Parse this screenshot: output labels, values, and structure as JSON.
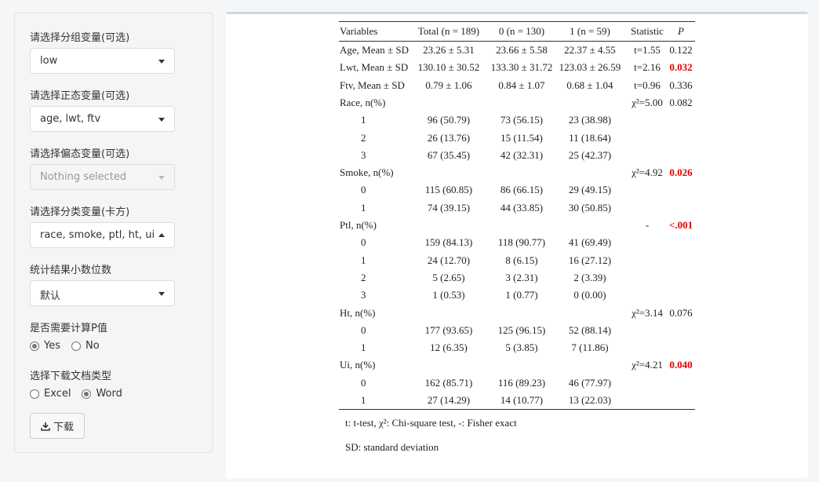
{
  "sidebar": {
    "group_label": "请选择分组变量(可选)",
    "group_value": "low",
    "normal_label": "请选择正态变量(可选)",
    "normal_value": "age, lwt, ftv",
    "skew_label": "请选择偏态变量(可选)",
    "skew_value": "Nothing selected",
    "cat_label": "请选择分类变量(卡方)",
    "cat_value": "race, smoke, ptl, ht, ui",
    "decimals_label": "统计结果小数位数",
    "decimals_value": "默认",
    "pvalue_label": "是否需要计算P值",
    "pvalue_yes": "Yes",
    "pvalue_no": "No",
    "doctype_label": "选择下载文档类型",
    "doctype_excel": "Excel",
    "doctype_word": "Word",
    "download_label": "下载"
  },
  "table": {
    "headers": [
      "Variables",
      "Total (n = 189)",
      "0 (n = 130)",
      "1 (n = 59)",
      "Statistic",
      "P"
    ],
    "rows": [
      {
        "v": "Age, Mean ± SD",
        "t": "23.26 ± 5.31",
        "a": "23.66 ± 5.58",
        "b": "22.37 ± 4.55",
        "s": "t=1.55",
        "p": "0.122",
        "sig": false,
        "indent": false
      },
      {
        "v": "Lwt, Mean ± SD",
        "t": "130.10 ± 30.52",
        "a": "133.30 ± 31.72",
        "b": "123.03 ± 26.59",
        "s": "t=2.16",
        "p": "0.032",
        "sig": true,
        "indent": false
      },
      {
        "v": "Ftv, Mean ± SD",
        "t": "0.79 ± 1.06",
        "a": "0.84 ± 1.07",
        "b": "0.68 ± 1.04",
        "s": "t=0.96",
        "p": "0.336",
        "sig": false,
        "indent": false
      },
      {
        "v": "Race, n(%)",
        "t": "",
        "a": "",
        "b": "",
        "s": "χ²=5.00",
        "p": "0.082",
        "sig": false,
        "indent": false
      },
      {
        "v": "1",
        "t": "96 (50.79)",
        "a": "73 (56.15)",
        "b": "23 (38.98)",
        "s": "",
        "p": "",
        "sig": false,
        "indent": true
      },
      {
        "v": "2",
        "t": "26 (13.76)",
        "a": "15 (11.54)",
        "b": "11 (18.64)",
        "s": "",
        "p": "",
        "sig": false,
        "indent": true
      },
      {
        "v": "3",
        "t": "67 (35.45)",
        "a": "42 (32.31)",
        "b": "25 (42.37)",
        "s": "",
        "p": "",
        "sig": false,
        "indent": true
      },
      {
        "v": "Smoke, n(%)",
        "t": "",
        "a": "",
        "b": "",
        "s": "χ²=4.92",
        "p": "0.026",
        "sig": true,
        "indent": false
      },
      {
        "v": "0",
        "t": "115 (60.85)",
        "a": "86 (66.15)",
        "b": "29 (49.15)",
        "s": "",
        "p": "",
        "sig": false,
        "indent": true
      },
      {
        "v": "1",
        "t": "74 (39.15)",
        "a": "44 (33.85)",
        "b": "30 (50.85)",
        "s": "",
        "p": "",
        "sig": false,
        "indent": true
      },
      {
        "v": "Ptl, n(%)",
        "t": "",
        "a": "",
        "b": "",
        "s": "-",
        "p": "<.001",
        "sig": true,
        "indent": false
      },
      {
        "v": "0",
        "t": "159 (84.13)",
        "a": "118 (90.77)",
        "b": "41 (69.49)",
        "s": "",
        "p": "",
        "sig": false,
        "indent": true
      },
      {
        "v": "1",
        "t": "24 (12.70)",
        "a": "8 (6.15)",
        "b": "16 (27.12)",
        "s": "",
        "p": "",
        "sig": false,
        "indent": true
      },
      {
        "v": "2",
        "t": "5 (2.65)",
        "a": "3 (2.31)",
        "b": "2 (3.39)",
        "s": "",
        "p": "",
        "sig": false,
        "indent": true
      },
      {
        "v": "3",
        "t": "1 (0.53)",
        "a": "1 (0.77)",
        "b": "0 (0.00)",
        "s": "",
        "p": "",
        "sig": false,
        "indent": true
      },
      {
        "v": "Ht, n(%)",
        "t": "",
        "a": "",
        "b": "",
        "s": "χ²=3.14",
        "p": "0.076",
        "sig": false,
        "indent": false
      },
      {
        "v": "0",
        "t": "177 (93.65)",
        "a": "125 (96.15)",
        "b": "52 (88.14)",
        "s": "",
        "p": "",
        "sig": false,
        "indent": true
      },
      {
        "v": "1",
        "t": "12 (6.35)",
        "a": "5 (3.85)",
        "b": "7 (11.86)",
        "s": "",
        "p": "",
        "sig": false,
        "indent": true
      },
      {
        "v": "Ui, n(%)",
        "t": "",
        "a": "",
        "b": "",
        "s": "χ²=4.21",
        "p": "0.040",
        "sig": true,
        "indent": false
      },
      {
        "v": "0",
        "t": "162 (85.71)",
        "a": "116 (89.23)",
        "b": "46 (77.97)",
        "s": "",
        "p": "",
        "sig": false,
        "indent": true
      },
      {
        "v": "1",
        "t": "27 (14.29)",
        "a": "14 (10.77)",
        "b": "13 (22.03)",
        "s": "",
        "p": "",
        "sig": false,
        "indent": true
      }
    ],
    "footnote1": "t: t-test, χ²: Chi-square test, -: Fisher exact",
    "footnote2": "SD: standard deviation"
  },
  "colors": {
    "significant": "#e00000"
  }
}
